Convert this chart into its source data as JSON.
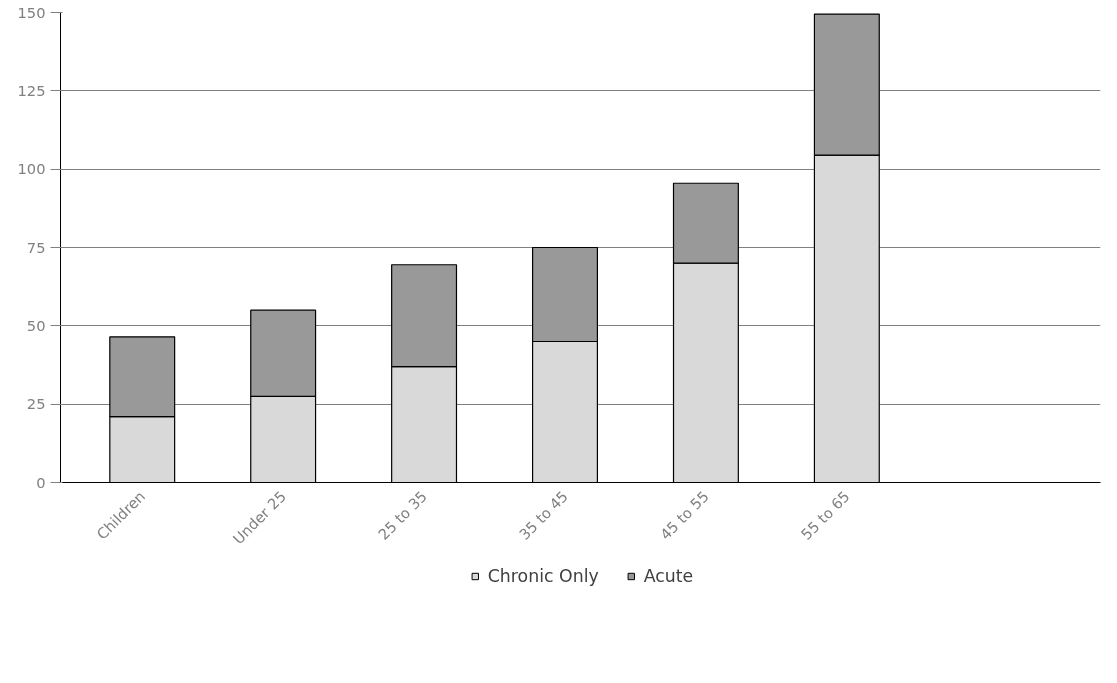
{
  "chart_data": {
    "type": "bar",
    "stacked": true,
    "categories": [
      "Children",
      "Under 25",
      "25 to 35",
      "35 to 45",
      "45 to 55",
      "55 to 65"
    ],
    "series": [
      {
        "name": "Chronic Only",
        "color": "#d9d9d9",
        "values": [
          21,
          27.5,
          37,
          45,
          70,
          104.5
        ]
      },
      {
        "name": "Acute",
        "color": "#999999",
        "values": [
          25.5,
          27.5,
          32.5,
          30,
          25.5,
          45
        ]
      }
    ],
    "ylim": [
      0,
      150
    ],
    "yticks": [
      0,
      25,
      50,
      75,
      100,
      125,
      150
    ],
    "grid": "y",
    "legend": "bottom"
  }
}
